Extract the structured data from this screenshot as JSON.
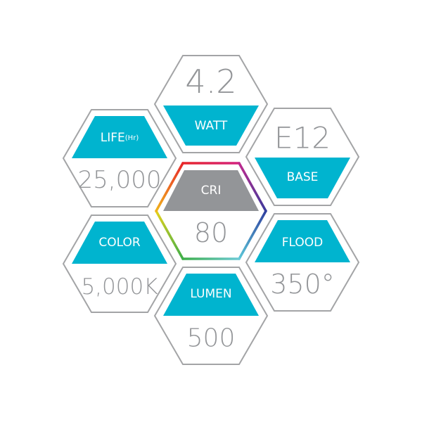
{
  "colors": {
    "accent": "#00b4cf",
    "value_gray": "#939598",
    "outline": "#a3a4a6"
  },
  "specs": {
    "watt": {
      "label": "WATT",
      "value": "4.2"
    },
    "life": {
      "label": "LIFE",
      "unit": "(Hr)",
      "value": "25,000"
    },
    "base": {
      "label": "BASE",
      "value": "E12"
    },
    "cri": {
      "label": "CRI",
      "value": "80"
    },
    "color": {
      "label": "COLOR",
      "value": "5,000K"
    },
    "flood": {
      "label": "FLOOD",
      "value": "350°"
    },
    "lumen": {
      "label": "LUMEN",
      "value": "500"
    }
  }
}
